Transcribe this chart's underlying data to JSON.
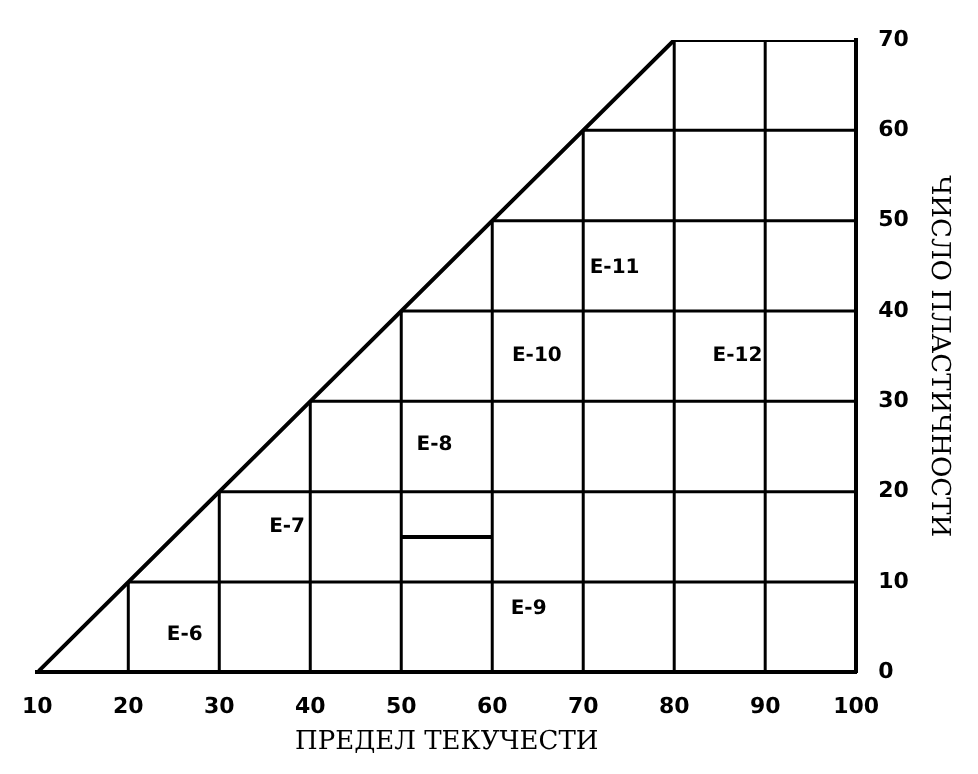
{
  "chart_data": {
    "type": "line",
    "xlabel": "ПРЕДЕЛ ТЕКУЧЕСТИ",
    "ylabel": "ЧИСЛО ПЛАСТИЧНОСТИ",
    "series": [
      {
        "color": "#000000",
        "x": [
          10,
          80,
          100
        ],
        "values": [
          0,
          70,
          70
        ]
      },
      {
        "color": "#000000",
        "x": [
          50,
          60
        ],
        "values": [
          15,
          15
        ]
      }
    ],
    "xlim": [
      10,
      100
    ],
    "xticks": [
      10,
      20,
      30,
      40,
      50,
      60,
      70,
      80,
      90,
      100
    ],
    "ylim": [
      0,
      70
    ],
    "yticks": [
      0,
      10,
      20,
      30,
      40,
      50,
      60,
      70
    ],
    "grid": true,
    "legend": false,
    "marker": "none",
    "line_style": "solid",
    "annotations": [
      "E-6",
      "E-7",
      "E-8",
      "E-9",
      "E-10",
      "E-11",
      "E-12"
    ]
  }
}
